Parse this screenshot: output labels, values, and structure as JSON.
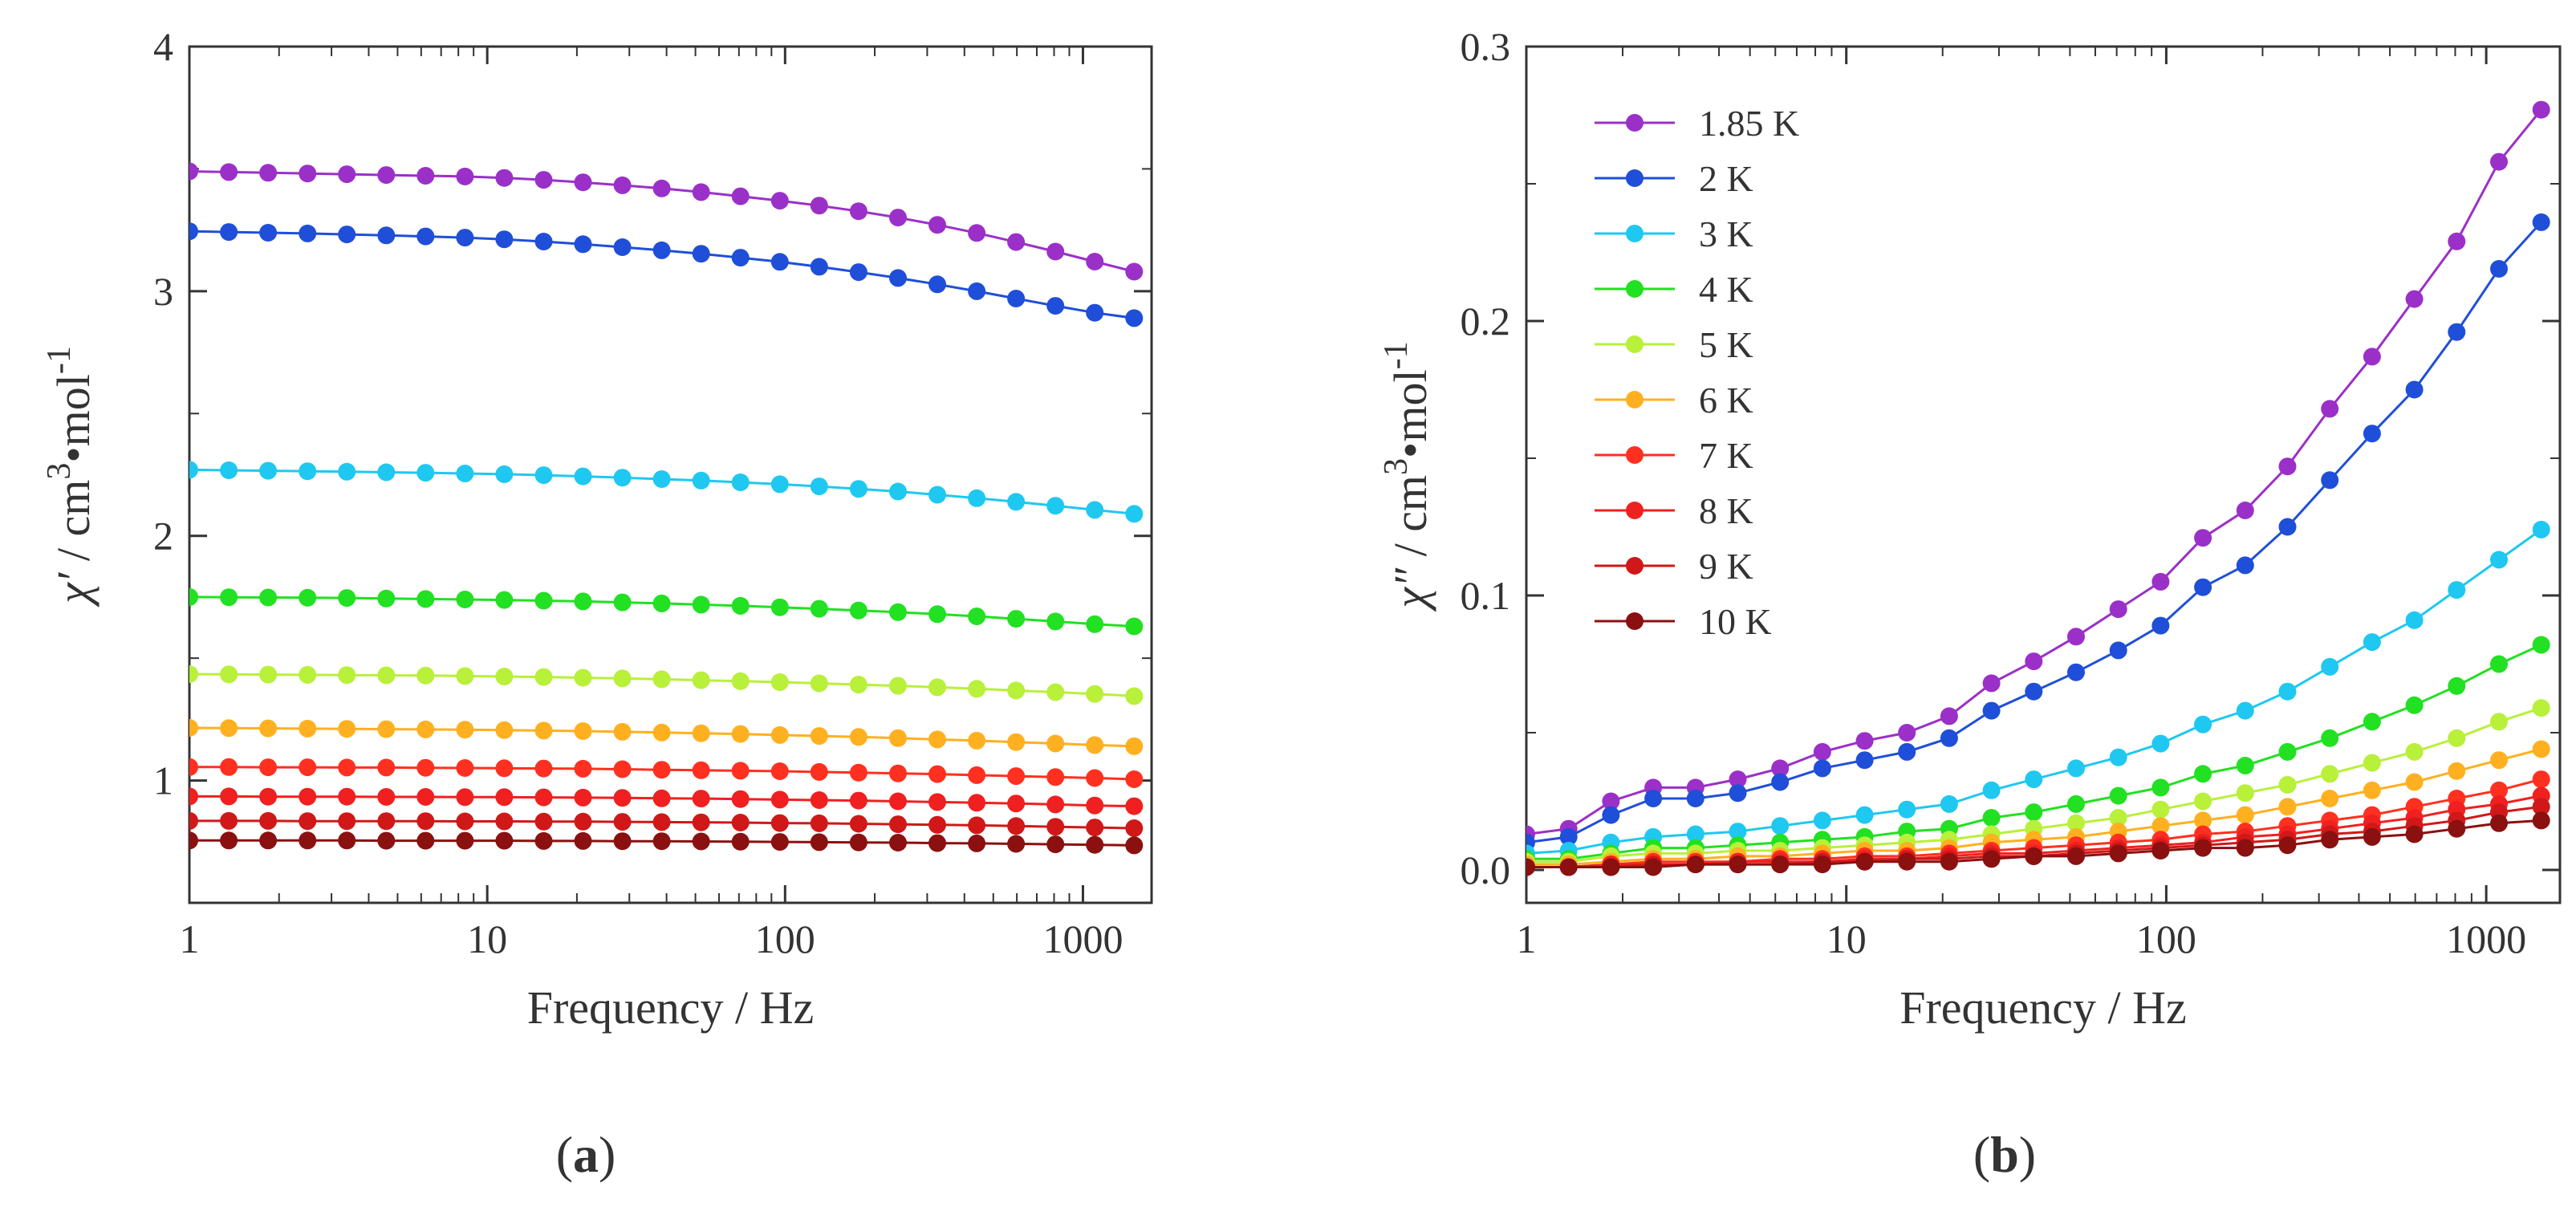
{
  "panels": [
    {
      "id": "a",
      "label_open": "(",
      "label_letter": "a",
      "label_close": ")"
    },
    {
      "id": "b",
      "label_open": "(",
      "label_letter": "b",
      "label_close": ")"
    }
  ],
  "chart_data": [
    {
      "type": "line",
      "panel": "a",
      "xlabel": "Frequency / Hz",
      "ylabel_symbol": "χ′",
      "ylabel_unit": " / cm",
      "ylabel_sup1": "3",
      "ylabel_mid": "•mol",
      "ylabel_sup2": "-1",
      "xscale": "log",
      "xlim": [
        1,
        1700
      ],
      "ylim": [
        0.5,
        4.0
      ],
      "xticks": [
        {
          "value": 1,
          "label": "1"
        },
        {
          "value": 10,
          "label": "10"
        },
        {
          "value": 100,
          "label": "100"
        },
        {
          "value": 1000,
          "label": "1000"
        }
      ],
      "yticks": [
        {
          "value": 1,
          "label": "1"
        },
        {
          "value": 2,
          "label": "2"
        },
        {
          "value": 3,
          "label": "3"
        },
        {
          "value": 4,
          "label": "4"
        }
      ],
      "x": [
        1.0,
        1.3557,
        1.8379,
        2.4916,
        3.3779,
        4.5795,
        6.2083,
        8.4166,
        11.4104,
        15.469,
        20.9713,
        28.4307,
        38.5434,
        52.2532,
        70.8397,
        96.0375,
        130.1981,
        176.5096,
        239.2936,
        324.41,
        439.7979,
        596.2293,
        808.3066,
        1095.8169,
        1485.6
      ],
      "series": [
        {
          "name": "1.85 K",
          "color": "#9b30c8",
          "values": [
            3.49,
            3.487,
            3.484,
            3.481,
            3.478,
            3.475,
            3.472,
            3.469,
            3.463,
            3.455,
            3.445,
            3.433,
            3.42,
            3.405,
            3.388,
            3.37,
            3.35,
            3.327,
            3.301,
            3.271,
            3.238,
            3.201,
            3.162,
            3.121,
            3.08
          ]
        },
        {
          "name": "2 K",
          "color": "#1f4fd8",
          "values": [
            3.245,
            3.242,
            3.239,
            3.236,
            3.232,
            3.228,
            3.224,
            3.219,
            3.212,
            3.203,
            3.192,
            3.18,
            3.167,
            3.153,
            3.137,
            3.12,
            3.1,
            3.078,
            3.054,
            3.028,
            3.0,
            2.97,
            2.94,
            2.912,
            2.89
          ]
        },
        {
          "name": "3 K",
          "color": "#1fc8f0",
          "values": [
            2.27,
            2.268,
            2.266,
            2.264,
            2.262,
            2.26,
            2.258,
            2.255,
            2.252,
            2.248,
            2.243,
            2.238,
            2.232,
            2.226,
            2.219,
            2.211,
            2.202,
            2.192,
            2.181,
            2.168,
            2.154,
            2.139,
            2.123,
            2.106,
            2.09
          ]
        },
        {
          "name": "4 K",
          "color": "#22e022",
          "values": [
            1.75,
            1.749,
            1.748,
            1.747,
            1.746,
            1.744,
            1.742,
            1.74,
            1.738,
            1.735,
            1.732,
            1.728,
            1.724,
            1.719,
            1.714,
            1.708,
            1.702,
            1.695,
            1.688,
            1.68,
            1.671,
            1.661,
            1.65,
            1.639,
            1.63
          ]
        },
        {
          "name": "5 K",
          "color": "#b8f03a",
          "values": [
            1.435,
            1.434,
            1.433,
            1.432,
            1.431,
            1.43,
            1.429,
            1.427,
            1.425,
            1.423,
            1.42,
            1.417,
            1.414,
            1.41,
            1.406,
            1.402,
            1.397,
            1.392,
            1.387,
            1.381,
            1.375,
            1.368,
            1.361,
            1.354,
            1.345
          ]
        },
        {
          "name": "6 K",
          "color": "#ffb020",
          "values": [
            1.215,
            1.214,
            1.213,
            1.212,
            1.211,
            1.21,
            1.209,
            1.208,
            1.206,
            1.204,
            1.202,
            1.199,
            1.196,
            1.193,
            1.19,
            1.186,
            1.182,
            1.178,
            1.173,
            1.168,
            1.163,
            1.157,
            1.151,
            1.145,
            1.14
          ]
        },
        {
          "name": "7 K",
          "color": "#ff3020",
          "values": [
            1.055,
            1.055,
            1.054,
            1.054,
            1.053,
            1.053,
            1.052,
            1.051,
            1.05,
            1.049,
            1.048,
            1.046,
            1.044,
            1.042,
            1.04,
            1.038,
            1.035,
            1.032,
            1.029,
            1.026,
            1.022,
            1.018,
            1.014,
            1.01,
            1.005
          ]
        },
        {
          "name": "8 K",
          "color": "#f02020",
          "values": [
            0.935,
            0.935,
            0.934,
            0.934,
            0.934,
            0.933,
            0.933,
            0.932,
            0.932,
            0.931,
            0.93,
            0.929,
            0.927,
            0.926,
            0.924,
            0.922,
            0.92,
            0.918,
            0.915,
            0.912,
            0.909,
            0.906,
            0.902,
            0.898,
            0.895
          ]
        },
        {
          "name": "9 K",
          "color": "#d01818",
          "values": [
            0.835,
            0.835,
            0.835,
            0.834,
            0.834,
            0.834,
            0.834,
            0.833,
            0.833,
            0.832,
            0.832,
            0.831,
            0.83,
            0.829,
            0.828,
            0.826,
            0.825,
            0.823,
            0.821,
            0.819,
            0.817,
            0.814,
            0.811,
            0.808,
            0.805
          ]
        },
        {
          "name": "10 K",
          "color": "#8b1010",
          "values": [
            0.755,
            0.755,
            0.755,
            0.755,
            0.755,
            0.754,
            0.754,
            0.754,
            0.754,
            0.753,
            0.753,
            0.752,
            0.752,
            0.751,
            0.75,
            0.749,
            0.748,
            0.747,
            0.746,
            0.744,
            0.743,
            0.741,
            0.739,
            0.737,
            0.735
          ]
        }
      ]
    },
    {
      "type": "line",
      "panel": "b",
      "xlabel": "Frequency / Hz",
      "ylabel_symbol": "χ″",
      "ylabel_unit": " / cm",
      "ylabel_sup1": "3",
      "ylabel_mid": "•mol",
      "ylabel_sup2": "-1",
      "xscale": "log",
      "xlim": [
        1,
        1700
      ],
      "ylim": [
        -0.012,
        0.3
      ],
      "legend_position": "top-left",
      "xticks": [
        {
          "value": 1,
          "label": "1"
        },
        {
          "value": 10,
          "label": "10"
        },
        {
          "value": 100,
          "label": "100"
        },
        {
          "value": 1000,
          "label": "1000"
        }
      ],
      "yticks": [
        {
          "value": 0.0,
          "label": "0.0"
        },
        {
          "value": 0.1,
          "label": "0.1"
        },
        {
          "value": 0.2,
          "label": "0.2"
        },
        {
          "value": 0.3,
          "label": "0.3"
        }
      ],
      "x": [
        1.0,
        1.3557,
        1.8379,
        2.4916,
        3.3779,
        4.5795,
        6.2083,
        8.4166,
        11.4104,
        15.469,
        20.9713,
        28.4307,
        38.5434,
        52.2532,
        70.8397,
        96.0375,
        130.1981,
        176.5096,
        239.2936,
        324.41,
        439.7979,
        596.2293,
        808.3066,
        1095.8169,
        1485.6
      ],
      "series": [
        {
          "name": "1.85 K",
          "color": "#9b30c8",
          "values": [
            0.013,
            0.015,
            0.025,
            0.03,
            0.03,
            0.033,
            0.037,
            0.043,
            0.047,
            0.05,
            0.056,
            0.068,
            0.076,
            0.085,
            0.095,
            0.105,
            0.121,
            0.131,
            0.147,
            0.168,
            0.187,
            0.208,
            0.229,
            0.258,
            0.277
          ]
        },
        {
          "name": "2 K",
          "color": "#1f4fd8",
          "values": [
            0.01,
            0.012,
            0.02,
            0.026,
            0.026,
            0.028,
            0.032,
            0.037,
            0.04,
            0.043,
            0.048,
            0.058,
            0.065,
            0.072,
            0.08,
            0.089,
            0.103,
            0.111,
            0.125,
            0.142,
            0.159,
            0.175,
            0.196,
            0.219,
            0.236
          ]
        },
        {
          "name": "3 K",
          "color": "#1fc8f0",
          "values": [
            0.006,
            0.007,
            0.01,
            0.012,
            0.013,
            0.014,
            0.016,
            0.018,
            0.02,
            0.022,
            0.024,
            0.029,
            0.033,
            0.037,
            0.041,
            0.046,
            0.053,
            0.058,
            0.065,
            0.074,
            0.083,
            0.091,
            0.102,
            0.113,
            0.124
          ]
        },
        {
          "name": "4 K",
          "color": "#22e022",
          "values": [
            0.004,
            0.004,
            0.006,
            0.008,
            0.008,
            0.009,
            0.01,
            0.011,
            0.012,
            0.014,
            0.015,
            0.019,
            0.021,
            0.024,
            0.027,
            0.03,
            0.035,
            0.038,
            0.043,
            0.048,
            0.054,
            0.06,
            0.067,
            0.075,
            0.082
          ]
        },
        {
          "name": "5 K",
          "color": "#b8f03a",
          "values": [
            0.003,
            0.003,
            0.005,
            0.006,
            0.006,
            0.007,
            0.007,
            0.008,
            0.009,
            0.01,
            0.011,
            0.013,
            0.015,
            0.017,
            0.019,
            0.022,
            0.025,
            0.028,
            0.031,
            0.035,
            0.039,
            0.043,
            0.048,
            0.054,
            0.059
          ]
        },
        {
          "name": "6 K",
          "color": "#ffb020",
          "values": [
            0.002,
            0.002,
            0.003,
            0.004,
            0.004,
            0.005,
            0.005,
            0.006,
            0.007,
            0.007,
            0.008,
            0.01,
            0.011,
            0.012,
            0.014,
            0.016,
            0.018,
            0.02,
            0.023,
            0.026,
            0.029,
            0.032,
            0.036,
            0.04,
            0.044
          ]
        },
        {
          "name": "7 K",
          "color": "#ff3020",
          "values": [
            0.001,
            0.001,
            0.002,
            0.003,
            0.003,
            0.003,
            0.004,
            0.004,
            0.005,
            0.005,
            0.006,
            0.007,
            0.008,
            0.009,
            0.01,
            0.011,
            0.013,
            0.014,
            0.016,
            0.018,
            0.02,
            0.023,
            0.026,
            0.029,
            0.033
          ]
        },
        {
          "name": "8 K",
          "color": "#f02020",
          "values": [
            0.001,
            0.001,
            0.002,
            0.002,
            0.002,
            0.003,
            0.003,
            0.003,
            0.004,
            0.004,
            0.005,
            0.006,
            0.006,
            0.007,
            0.008,
            0.009,
            0.01,
            0.012,
            0.013,
            0.015,
            0.017,
            0.019,
            0.022,
            0.024,
            0.027
          ]
        },
        {
          "name": "9 K",
          "color": "#d01818",
          "values": [
            0.001,
            0.001,
            0.001,
            0.002,
            0.002,
            0.002,
            0.002,
            0.003,
            0.003,
            0.004,
            0.004,
            0.005,
            0.005,
            0.006,
            0.007,
            0.008,
            0.009,
            0.01,
            0.011,
            0.013,
            0.014,
            0.016,
            0.018,
            0.021,
            0.023
          ]
        },
        {
          "name": "10 K",
          "color": "#8b1010",
          "values": [
            0.001,
            0.001,
            0.001,
            0.001,
            0.002,
            0.002,
            0.002,
            0.002,
            0.003,
            0.003,
            0.003,
            0.004,
            0.005,
            0.005,
            0.006,
            0.007,
            0.008,
            0.008,
            0.009,
            0.011,
            0.012,
            0.013,
            0.015,
            0.017,
            0.018
          ]
        }
      ]
    }
  ]
}
